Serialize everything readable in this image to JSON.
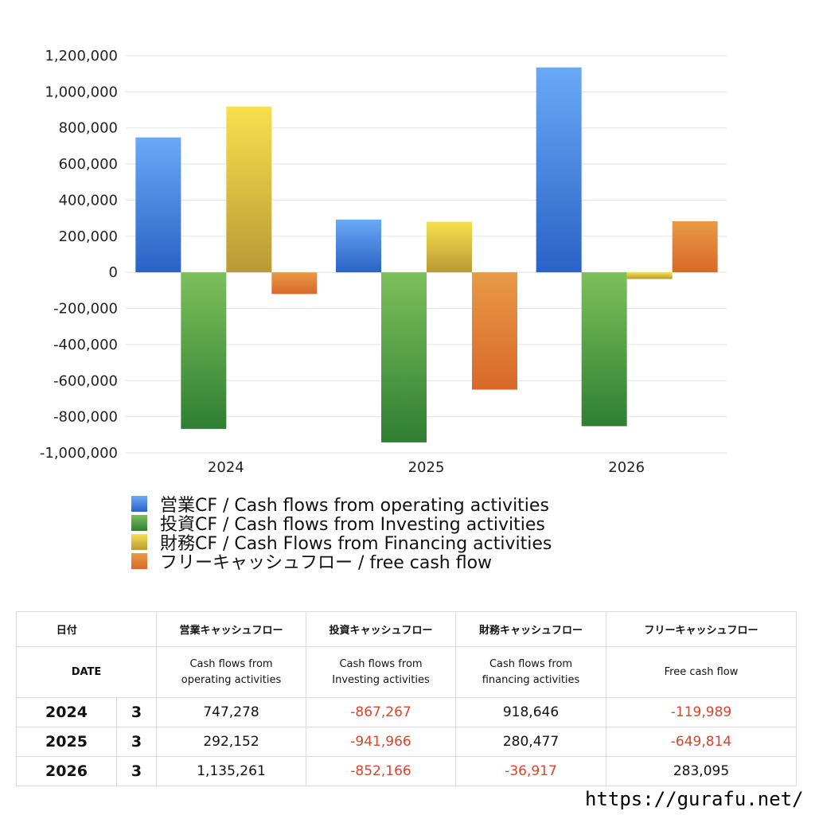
{
  "chart_data": {
    "type": "bar",
    "categories": [
      "2024",
      "2025",
      "2026"
    ],
    "ylim": [
      -1000000,
      1200000
    ],
    "yticks": [
      "1,200,000",
      "1,000,000",
      "800,000",
      "600,000",
      "400,000",
      "200,000",
      "0",
      "-200,000",
      "-400,000",
      "-600,000",
      "-800,000",
      "-1,000,000"
    ],
    "series": [
      {
        "name": "営業CF / Cash flows from operating activities",
        "values": [
          747278,
          292152,
          1135261
        ],
        "color_top": "#6aa9f6",
        "color_bottom": "#2a62c6"
      },
      {
        "name": "投資CF / Cash flows from Investing activities",
        "values": [
          -867267,
          -941966,
          -852166
        ],
        "color_top": "#7cc05a",
        "color_bottom": "#2f7f33"
      },
      {
        "name": "財務CF / Cash Flows from Financing activities",
        "values": [
          918646,
          280477,
          -36917
        ],
        "color_top": "#f7e04d",
        "color_bottom": "#b99a36"
      },
      {
        "name": "フリーキャッシュフロー / free cash flow",
        "values": [
          -119989,
          -649814,
          283095
        ],
        "color_top": "#e89a45",
        "color_bottom": "#d9682a"
      }
    ],
    "grid": true,
    "legend": "bottom"
  },
  "table": {
    "headers_jp": [
      "日付",
      "",
      "営業キャッシュフロー",
      "投資キャッシュフロー",
      "財務キャッシュフロー",
      "フリーキャッシュフロー"
    ],
    "headers_en_date": "DATE",
    "headers_en": [
      [
        "Cash flows from",
        "operating activities"
      ],
      [
        "Cash flows from",
        "Investing activities"
      ],
      [
        "Cash flows from",
        "financing activities"
      ],
      [
        "Free cash flow",
        ""
      ]
    ],
    "rows": [
      {
        "year": "2024",
        "count": "3",
        "values": [
          "747,278",
          "-867,267",
          "918,646",
          "-119,989"
        ]
      },
      {
        "year": "2025",
        "count": "3",
        "values": [
          "292,152",
          "-941,966",
          "280,477",
          "-649,814"
        ]
      },
      {
        "year": "2026",
        "count": "3",
        "values": [
          "1,135,261",
          "-852,166",
          "-36,917",
          "283,095"
        ]
      }
    ]
  },
  "footer_url": "https://gurafu.net/"
}
